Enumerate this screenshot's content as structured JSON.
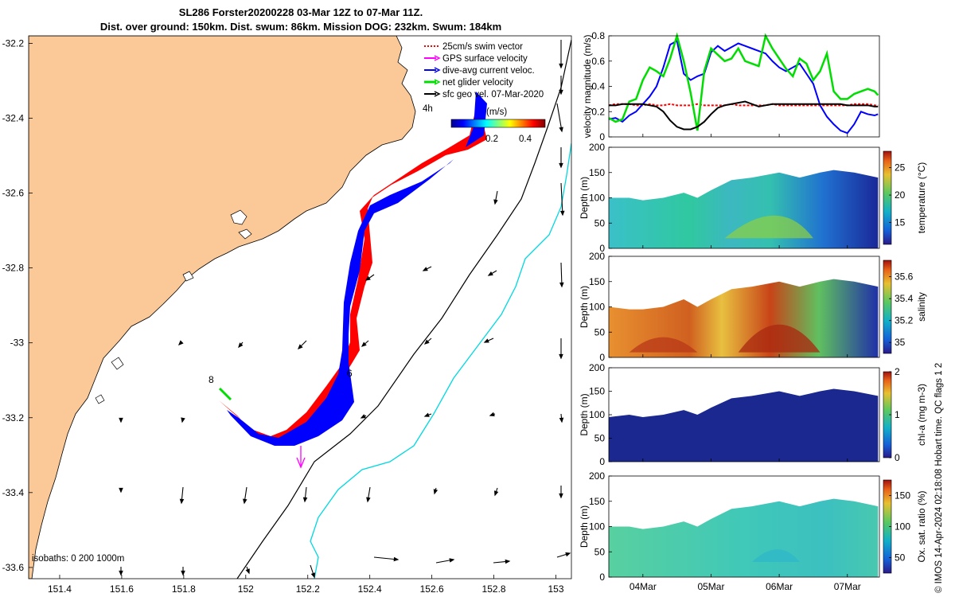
{
  "title_line1": "SL286 Forster20200228 03-Mar 12Z to 07-Mar 11Z.",
  "title_line2": "Dist. over ground: 150km. Dist. swum: 86km. Mission DOG: 232km. Swum: 184km",
  "side_note": "© IMOS 14-Apr-2024 02:18:08 Hobart time. QC flags 1  2",
  "colors": {
    "land": "#fbc998",
    "swim": "#ff0000",
    "gps": "#ff00ff",
    "dive": "#0000ff",
    "net": "#00dd00",
    "sfc": "#000000",
    "cyan": "#00d8e0"
  },
  "map": {
    "legend": [
      {
        "label": "25cm/s swim vector",
        "color": "#ff0000",
        "style": "dotted"
      },
      {
        "label": "GPS surface velocity",
        "color": "#ff00ff",
        "style": "arrow"
      },
      {
        "label": "dive-avg current veloc.",
        "color": "#0000ff",
        "style": "arrow"
      },
      {
        "label": "net glider velocity",
        "color": "#00dd00",
        "style": "arrow"
      },
      {
        "label": "sfc geo vel. 07-Mar-2020",
        "color": "#000000",
        "style": "arrow"
      }
    ],
    "legend_4h": "4h",
    "cbar_unit": "(m/s)",
    "cbar_ticks": [
      "0.2",
      "0.4"
    ],
    "isobaths": "isobaths: 0   200  1000m",
    "marker_6": "6",
    "marker_8": "8",
    "xticks": [
      "151.4",
      "151.6",
      "151.8",
      "152",
      "152.2",
      "152.4",
      "152.6",
      "152.8",
      "153"
    ],
    "yticks": [
      "-32.2",
      "-32.4",
      "-32.6",
      "-32.8",
      "-33",
      "-33.2",
      "-33.4",
      "-33.6"
    ]
  },
  "chart_data": [
    {
      "type": "line",
      "title": "",
      "ylabel": "velocity magnitude (m/s)",
      "xlabel": "",
      "ylim": [
        0,
        0.8
      ],
      "yticks": [
        "0",
        "0.2",
        "0.4",
        "0.6",
        "0.8"
      ],
      "x_days": [
        3.5,
        3.6,
        3.7,
        3.8,
        3.9,
        4.0,
        4.1,
        4.2,
        4.3,
        4.4,
        4.5,
        4.6,
        4.7,
        4.8,
        4.9,
        5.0,
        5.1,
        5.2,
        5.3,
        5.4,
        5.5,
        5.6,
        5.7,
        5.8,
        5.9,
        6.0,
        6.1,
        6.2,
        6.3,
        6.4,
        6.5,
        6.6,
        6.7,
        6.8,
        6.9,
        7.0,
        7.1,
        7.2,
        7.3,
        7.4,
        7.45
      ],
      "series": [
        {
          "name": "swim",
          "color": "#ff0000",
          "values": [
            0.25,
            0.26,
            0.26,
            0.26,
            0.25,
            0.25,
            0.26,
            0.25,
            0.25,
            0.26,
            0.25,
            0.25,
            0.25,
            0.26,
            0.25,
            0.25,
            0.25,
            0.25,
            0.26,
            0.25,
            0.25,
            0.25,
            0.25,
            0.25,
            0.26,
            0.25,
            0.25,
            0.25,
            0.25,
            0.25,
            0.25,
            0.25,
            0.25,
            0.25,
            0.25,
            0.25,
            0.26,
            0.26,
            0.26,
            0.25,
            0.25
          ]
        },
        {
          "name": "dive",
          "color": "#0000ff",
          "values": [
            0.14,
            0.15,
            0.12,
            0.17,
            0.2,
            0.26,
            0.32,
            0.4,
            0.55,
            0.73,
            0.76,
            0.5,
            0.45,
            0.48,
            0.5,
            0.67,
            0.72,
            0.68,
            0.71,
            0.74,
            0.72,
            0.7,
            0.68,
            0.66,
            0.6,
            0.55,
            0.52,
            0.55,
            0.58,
            0.5,
            0.42,
            0.25,
            0.16,
            0.1,
            0.05,
            0.03,
            0.1,
            0.2,
            0.18,
            0.17,
            0.18
          ]
        },
        {
          "name": "net",
          "color": "#00dd00",
          "values": [
            0.15,
            0.12,
            0.14,
            0.28,
            0.3,
            0.45,
            0.55,
            0.52,
            0.48,
            0.62,
            0.82,
            0.6,
            0.35,
            0.05,
            0.52,
            0.7,
            0.65,
            0.6,
            0.62,
            0.7,
            0.6,
            0.58,
            0.56,
            0.82,
            0.7,
            0.62,
            0.54,
            0.48,
            0.62,
            0.58,
            0.45,
            0.52,
            0.66,
            0.36,
            0.3,
            0.3,
            0.34,
            0.36,
            0.38,
            0.36,
            0.33
          ]
        },
        {
          "name": "sfc",
          "color": "#000000",
          "values": [
            0.25,
            0.25,
            0.26,
            0.26,
            0.26,
            0.26,
            0.25,
            0.24,
            0.2,
            0.13,
            0.08,
            0.06,
            0.06,
            0.08,
            0.12,
            0.18,
            0.23,
            0.25,
            0.26,
            0.27,
            0.28,
            0.26,
            0.24,
            0.25,
            0.26,
            0.26,
            0.26,
            0.26,
            0.26,
            0.26,
            0.26,
            0.26,
            0.26,
            0.26,
            0.26,
            0.25,
            0.25,
            0.25,
            0.25,
            0.24,
            0.24
          ]
        }
      ]
    },
    {
      "type": "heatmap",
      "title": "",
      "ylabel": "Depth (m)",
      "cbar_label": "temperature (°C)",
      "ylim": [
        200,
        0
      ],
      "yticks": [
        "0",
        "50",
        "100",
        "150",
        "200"
      ],
      "cbar_range": [
        11,
        28
      ],
      "cbar_ticks": [
        "15",
        "20",
        "25"
      ],
      "bottom_depth": [
        [
          3.5,
          100
        ],
        [
          3.8,
          100
        ],
        [
          4.0,
          95
        ],
        [
          4.3,
          100
        ],
        [
          4.6,
          110
        ],
        [
          4.8,
          100
        ],
        [
          5.0,
          115
        ],
        [
          5.3,
          135
        ],
        [
          5.6,
          140
        ],
        [
          6.0,
          150
        ],
        [
          6.3,
          140
        ],
        [
          6.6,
          150
        ],
        [
          6.8,
          155
        ],
        [
          7.1,
          150
        ],
        [
          7.45,
          140
        ]
      ]
    },
    {
      "type": "heatmap",
      "title": "",
      "ylabel": "Depth (m)",
      "cbar_label": "salinity",
      "ylim": [
        200,
        0
      ],
      "yticks": [
        "0",
        "50",
        "100",
        "150",
        "200"
      ],
      "cbar_range": [
        34.9,
        35.75
      ],
      "cbar_ticks": [
        "35",
        "35.2",
        "35.4",
        "35.6"
      ],
      "bottom_depth": [
        [
          3.5,
          100
        ],
        [
          3.8,
          95
        ],
        [
          4.0,
          95
        ],
        [
          4.3,
          100
        ],
        [
          4.6,
          115
        ],
        [
          4.8,
          100
        ],
        [
          5.0,
          115
        ],
        [
          5.3,
          135
        ],
        [
          5.6,
          140
        ],
        [
          6.0,
          150
        ],
        [
          6.3,
          140
        ],
        [
          6.6,
          150
        ],
        [
          6.8,
          155
        ],
        [
          7.1,
          150
        ],
        [
          7.45,
          140
        ]
      ]
    },
    {
      "type": "heatmap",
      "title": "",
      "ylabel": "Depth (m)",
      "cbar_label": "chl-a (mg m-3)",
      "ylim": [
        200,
        0
      ],
      "yticks": [
        "0",
        "50",
        "100",
        "150",
        "200"
      ],
      "cbar_range": [
        0,
        2
      ],
      "cbar_ticks": [
        "0",
        "1",
        "2"
      ],
      "bottom_depth": [
        [
          3.5,
          95
        ],
        [
          3.8,
          100
        ],
        [
          4.0,
          95
        ],
        [
          4.3,
          100
        ],
        [
          4.6,
          110
        ],
        [
          4.8,
          100
        ],
        [
          5.0,
          115
        ],
        [
          5.3,
          135
        ],
        [
          5.6,
          140
        ],
        [
          6.0,
          150
        ],
        [
          6.3,
          140
        ],
        [
          6.6,
          150
        ],
        [
          6.8,
          155
        ],
        [
          7.1,
          150
        ],
        [
          7.45,
          140
        ]
      ]
    },
    {
      "type": "heatmap",
      "title": "",
      "ylabel": "Depth (m)",
      "cbar_label": "Ox. sat. ratio (%)",
      "ylim": [
        200,
        0
      ],
      "yticks": [
        "0",
        "50",
        "100",
        "150",
        "200"
      ],
      "cbar_range": [
        25,
        175
      ],
      "cbar_ticks": [
        "50",
        "100",
        "150"
      ],
      "xticks": [
        "04Mar",
        "05Mar",
        "06Mar",
        "07Mar"
      ],
      "bottom_depth": [
        [
          3.5,
          100
        ],
        [
          3.8,
          100
        ],
        [
          4.0,
          95
        ],
        [
          4.3,
          100
        ],
        [
          4.6,
          110
        ],
        [
          4.8,
          100
        ],
        [
          5.0,
          115
        ],
        [
          5.3,
          135
        ],
        [
          5.6,
          140
        ],
        [
          6.0,
          150
        ],
        [
          6.3,
          140
        ],
        [
          6.6,
          150
        ],
        [
          6.8,
          155
        ],
        [
          7.1,
          150
        ],
        [
          7.45,
          140
        ]
      ]
    }
  ]
}
